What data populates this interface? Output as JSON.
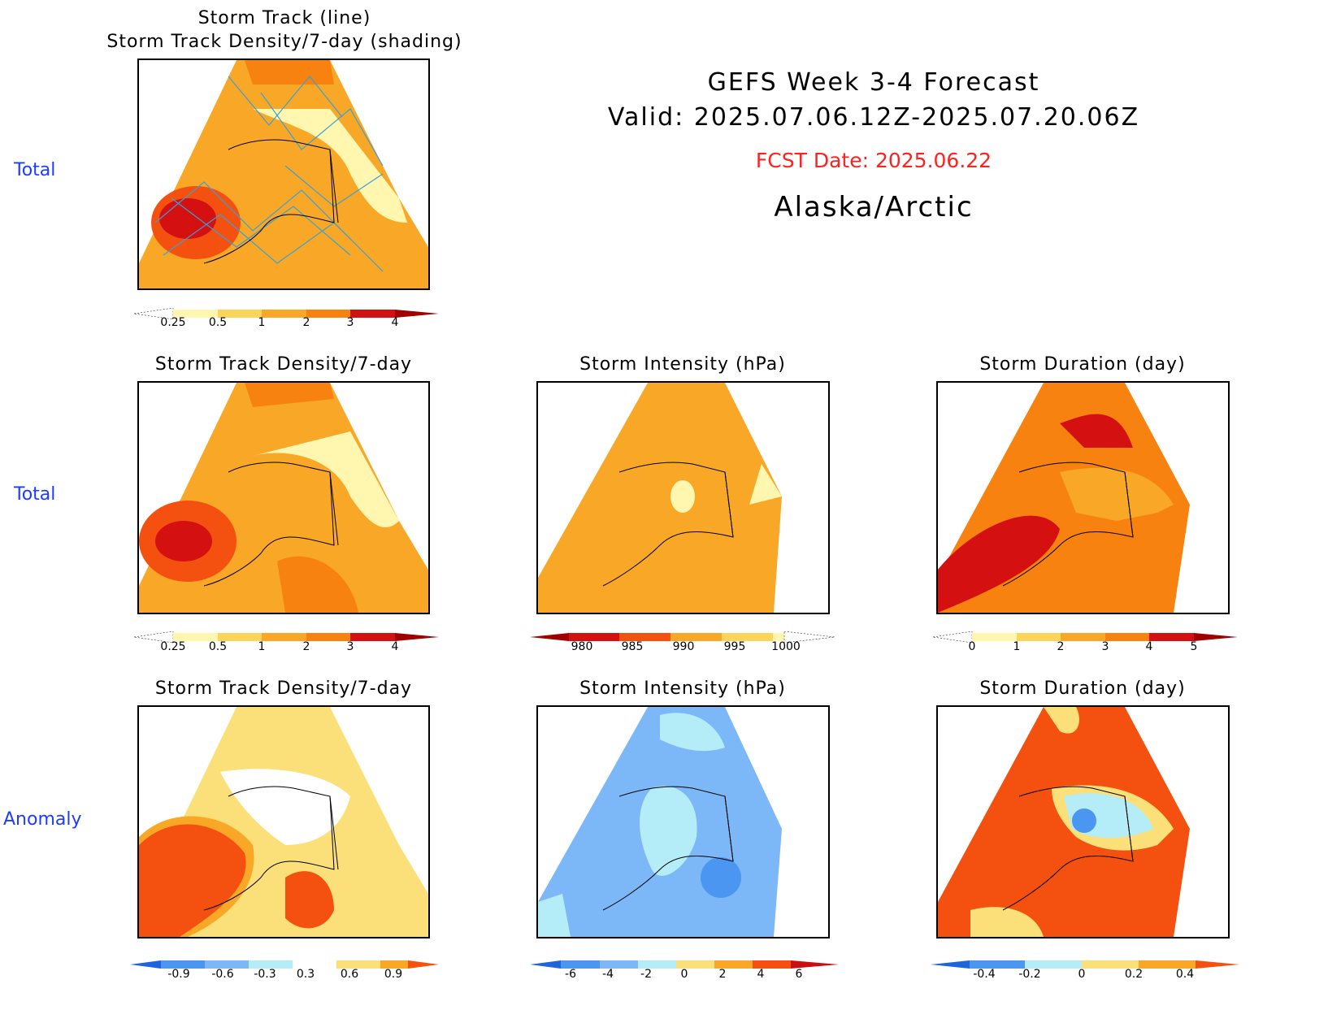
{
  "header": {
    "line1": "GEFS Week 3-4 Forecast",
    "line2": "Valid: 2025.07.06.12Z-2025.07.20.06Z",
    "fcst_date": "FCST Date: 2025.06.22",
    "region": "Alaska/Arctic",
    "fcst_color": "#ff2020"
  },
  "row_labels": {
    "row1": "Total",
    "row2": "Total",
    "row3": "Anomaly"
  },
  "panels": {
    "p1": {
      "title_line1": "Storm Track (line)",
      "title_line2": "Storm Track Density/7-day (shading)"
    },
    "p2": {
      "title": "Storm Track Density/7-day"
    },
    "p3": {
      "title": "Storm Intensity (hPa)"
    },
    "p4": {
      "title": "Storm Duration (day)"
    },
    "p5": {
      "title": "Storm Track Density/7-day"
    },
    "p6": {
      "title": "Storm Intensity (hPa)"
    },
    "p7": {
      "title": "Storm Duration (day)"
    }
  },
  "colorbars": {
    "density_total": {
      "ticks": [
        "0.25",
        "0.5",
        "1",
        "2",
        "3",
        "4"
      ],
      "colors": [
        "#fff7b0",
        "#fbd45a",
        "#f8a826",
        "#f88210",
        "#f45010",
        "#d41010",
        "#a00000"
      ]
    },
    "intensity_total": {
      "ticks": [
        "980",
        "985",
        "990",
        "995",
        "1000"
      ],
      "colors": [
        "#a00000",
        "#d41010",
        "#f45010",
        "#f88210",
        "#f8a826",
        "#fbd45a",
        "#fff7b0"
      ]
    },
    "duration_total": {
      "ticks": [
        "0",
        "1",
        "2",
        "3",
        "4",
        "5"
      ],
      "colors": [
        "#fff7b0",
        "#fbd45a",
        "#f8a826",
        "#f88210",
        "#f45010",
        "#d41010",
        "#a00000"
      ]
    },
    "density_anom": {
      "ticks": [
        "-0.9",
        "-0.6",
        "-0.3",
        "0.3",
        "0.6",
        "0.9"
      ],
      "colors": [
        "#1e64dc",
        "#4a96f0",
        "#7cb8f8",
        "#b4ecf8",
        "#ffffff",
        "#fbe07a",
        "#f8a826",
        "#f45010",
        "#c81010"
      ]
    },
    "intensity_anom": {
      "ticks": [
        "-6",
        "-4",
        "-2",
        "0",
        "2",
        "4",
        "6"
      ],
      "colors": [
        "#1e64dc",
        "#4a96f0",
        "#7cb8f8",
        "#b4ecf8",
        "#fbe07a",
        "#f8a826",
        "#f45010",
        "#c81010"
      ]
    },
    "duration_anom": {
      "ticks": [
        "-0.4",
        "-0.2",
        "0",
        "0.2",
        "0.4"
      ],
      "colors": [
        "#1e64dc",
        "#4a96f0",
        "#b4ecf8",
        "#fbe07a",
        "#f8a826",
        "#f45010"
      ]
    }
  }
}
